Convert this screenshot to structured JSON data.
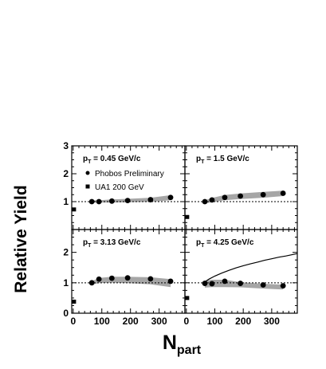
{
  "chart_data": {
    "type": "scatter",
    "ylabel": "Relative Yield",
    "xlabel": "N",
    "xlabel_sub": "part",
    "x_ticks": [
      "0",
      "100",
      "200",
      "300"
    ],
    "y_ticks_top": [
      "1",
      "2",
      "3"
    ],
    "y_ticks_bottom": [
      "0",
      "1",
      "2"
    ],
    "xlim": [
      -5,
      390
    ],
    "ylim_top": [
      0,
      3
    ],
    "ylim_bottom": [
      0,
      2.75
    ],
    "legend": {
      "phobos": "Phobos Preliminary",
      "ua1": "UA1 200 GeV",
      "placement": "top-left panel"
    },
    "panels": [
      {
        "pt_label": "p",
        "pt_sub": "T",
        "pt_value": " = 0.45 GeV/c",
        "phobos": {
          "x": [
            65,
            90,
            135,
            190,
            270,
            340
          ],
          "y": [
            1.0,
            1.0,
            1.02,
            1.04,
            1.07,
            1.15
          ]
        },
        "band_upper": [
          1.05,
          1.05,
          1.08,
          1.1,
          1.14,
          1.23
        ],
        "band_lower": [
          0.97,
          0.97,
          0.97,
          0.98,
          0.99,
          1.05
        ],
        "ua1": {
          "x": [
            3
          ],
          "y": [
            0.72
          ]
        },
        "curve": null
      },
      {
        "pt_label": "p",
        "pt_sub": "T",
        "pt_value": " = 1.5 GeV/c",
        "phobos": {
          "x": [
            65,
            90,
            135,
            190,
            270,
            340
          ],
          "y": [
            1.0,
            1.06,
            1.15,
            1.2,
            1.25,
            1.3
          ]
        },
        "band_upper": [
          1.05,
          1.13,
          1.24,
          1.29,
          1.35,
          1.39
        ],
        "band_lower": [
          0.94,
          0.98,
          1.05,
          1.09,
          1.14,
          1.2
        ],
        "ua1": {
          "x": [
            3
          ],
          "y": [
            0.45
          ]
        },
        "curve": null
      },
      {
        "pt_label": "p",
        "pt_sub": "T",
        "pt_value": " = 3.13 GeV/c",
        "phobos": {
          "x": [
            65,
            90,
            135,
            190,
            270,
            340
          ],
          "y": [
            1.0,
            1.12,
            1.15,
            1.16,
            1.13,
            1.05
          ]
        },
        "band_upper": [
          1.05,
          1.16,
          1.2,
          1.2,
          1.18,
          1.12
        ],
        "band_lower": [
          0.94,
          0.99,
          1.0,
          0.99,
          0.95,
          0.86
        ],
        "ua1": {
          "x": [
            3
          ],
          "y": [
            0.38
          ]
        },
        "curve": null
      },
      {
        "pt_label": "p",
        "pt_sub": "T",
        "pt_value": " = 4.25 GeV/c",
        "phobos": {
          "x": [
            65,
            90,
            135,
            190,
            270,
            340
          ],
          "y": [
            0.98,
            0.97,
            1.05,
            0.98,
            0.93,
            0.9
          ]
        },
        "band_upper": [
          1.06,
          1.1,
          1.1,
          1.02,
          0.97,
          0.94
        ],
        "band_lower": [
          0.84,
          0.86,
          0.86,
          0.85,
          0.81,
          0.78
        ],
        "ua1": {
          "x": [
            3
          ],
          "y": [
            0.5
          ]
        },
        "curve": {
          "x": [
            60,
            80,
            100,
            125,
            150,
            175,
            200,
            225,
            250,
            275,
            300,
            325,
            350,
            375,
            390
          ],
          "y": [
            1.0,
            1.12,
            1.22,
            1.32,
            1.41,
            1.49,
            1.56,
            1.62,
            1.68,
            1.74,
            1.79,
            1.84,
            1.88,
            1.93,
            1.96
          ]
        }
      }
    ],
    "reference_line_y": 1.0,
    "grid": false
  }
}
